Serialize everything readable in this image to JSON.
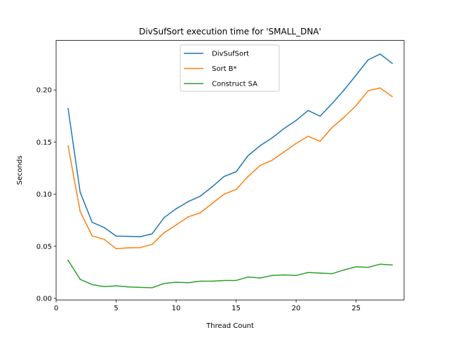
{
  "chart_data": {
    "type": "line",
    "title": "DivSufSort execution time for 'SMALL_DNA'",
    "xlabel": "Thread Count",
    "ylabel": "Seconds",
    "xlim": [
      0,
      29
    ],
    "ylim": [
      -0.0015,
      0.2475
    ],
    "xticks": [
      0,
      5,
      10,
      15,
      20,
      25
    ],
    "xtick_labels": [
      "0",
      "5",
      "10",
      "15",
      "20",
      "25"
    ],
    "yticks": [
      0.0,
      0.05,
      0.1,
      0.15,
      0.2
    ],
    "ytick_labels": [
      "0.00",
      "0.05",
      "0.10",
      "0.15",
      "0.20"
    ],
    "grid": false,
    "legend_position": "top-center",
    "x": [
      1,
      2,
      3,
      4,
      5,
      6,
      7,
      8,
      9,
      10,
      11,
      12,
      13,
      14,
      15,
      16,
      17,
      18,
      19,
      20,
      21,
      22,
      23,
      24,
      25,
      26,
      27,
      28
    ],
    "series": [
      {
        "name": "DivSufSort",
        "color": "#1f77b4",
        "values": [
          0.182,
          0.102,
          0.073,
          0.068,
          0.0598,
          0.0595,
          0.0592,
          0.0619,
          0.0775,
          0.086,
          0.0928,
          0.098,
          0.107,
          0.117,
          0.1215,
          0.137,
          0.1465,
          0.154,
          0.163,
          0.1707,
          0.1803,
          0.1748,
          0.187,
          0.2,
          0.2142,
          0.2288,
          0.2345,
          0.2256
        ]
      },
      {
        "name": "Sort B*",
        "color": "#ff7f0e",
        "values": [
          0.1461,
          0.0835,
          0.06,
          0.0567,
          0.0477,
          0.0485,
          0.0487,
          0.0518,
          0.063,
          0.0704,
          0.0782,
          0.082,
          0.091,
          0.1,
          0.1045,
          0.117,
          0.1275,
          0.1325,
          0.1405,
          0.1487,
          0.1556,
          0.1507,
          0.164,
          0.1738,
          0.185,
          0.1992,
          0.2019,
          0.1937
        ]
      },
      {
        "name": "Construct SA",
        "color": "#2ca02c",
        "values": [
          0.0365,
          0.0183,
          0.0132,
          0.0113,
          0.012,
          0.011,
          0.0105,
          0.0102,
          0.0143,
          0.0155,
          0.015,
          0.0165,
          0.0165,
          0.0172,
          0.0172,
          0.0205,
          0.0195,
          0.022,
          0.0225,
          0.022,
          0.0248,
          0.0242,
          0.0237,
          0.0273,
          0.0303,
          0.0298,
          0.0328,
          0.032
        ]
      }
    ]
  }
}
